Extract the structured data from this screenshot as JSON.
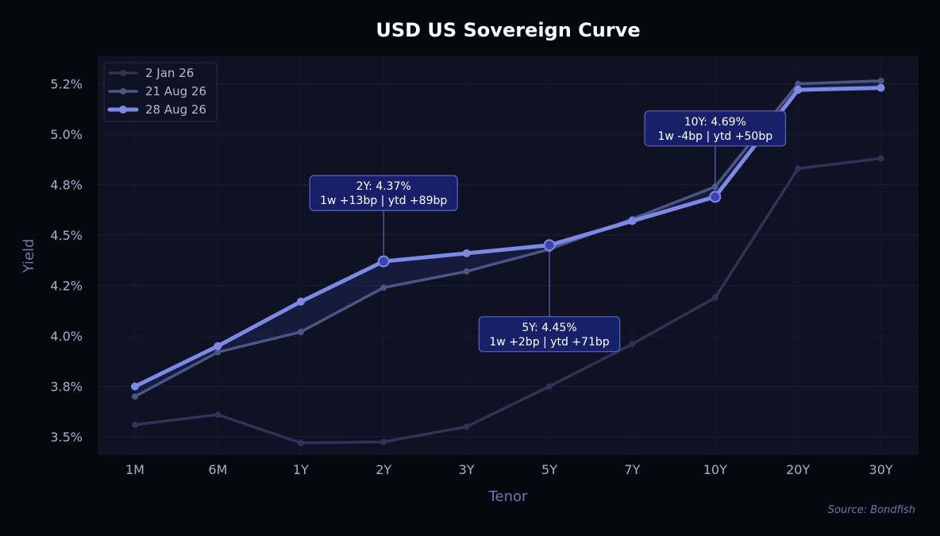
{
  "chart_data": {
    "type": "line",
    "title": "USD US Sovereign Curve",
    "xlabel": "Tenor",
    "ylabel": "Yield",
    "categories": [
      "1M",
      "6M",
      "1Y",
      "2Y",
      "3Y",
      "5Y",
      "7Y",
      "10Y",
      "20Y",
      "30Y"
    ],
    "ylim": [
      3.41,
      5.39
    ],
    "yticks": [
      3.5,
      3.75,
      4.0,
      4.25,
      4.5,
      4.75,
      5.0,
      5.25
    ],
    "ytick_labels": [
      "3.5%",
      "3.8%",
      "4.0%",
      "4.2%",
      "4.5%",
      "4.8%",
      "5.0%",
      "5.2%"
    ],
    "grid": true,
    "legend_position": "top-left",
    "series": [
      {
        "name": "2 Jan 26",
        "color": "#2f3358",
        "values": [
          3.56,
          3.61,
          3.47,
          3.475,
          3.55,
          3.75,
          3.96,
          4.19,
          4.83,
          4.88
        ]
      },
      {
        "name": "21 Aug 26",
        "color": "#4c5587",
        "values": [
          3.7,
          3.92,
          4.02,
          4.24,
          4.32,
          4.43,
          4.58,
          4.74,
          5.25,
          5.265
        ]
      },
      {
        "name": "28 Aug 26",
        "color": "#7c8ae6",
        "values": [
          3.75,
          3.95,
          4.17,
          4.37,
          4.41,
          4.45,
          4.57,
          4.69,
          5.22,
          5.23
        ]
      }
    ],
    "fill_between": [
      "21 Aug 26",
      "28 Aug 26"
    ],
    "annotations": [
      {
        "category": "2Y",
        "line1": "2Y: 4.37%",
        "line2": "1w +13bp | ytd +89bp",
        "placement": "above"
      },
      {
        "category": "5Y",
        "line1": "5Y: 4.45%",
        "line2": "1w +2bp | ytd +71bp",
        "placement": "below"
      },
      {
        "category": "10Y",
        "line1": "10Y: 4.69%",
        "line2": "1w -4bp | ytd +50bp",
        "placement": "above"
      }
    ],
    "source": "Source: Bondfish"
  },
  "colors": {
    "background": "#060810",
    "plot_background": "#0e1222",
    "grid": "#1a1f36",
    "tick_text": "#a9aec8",
    "axis_label": "#6f78a8",
    "title": "#ffffff",
    "annotation_box": "#19206a",
    "annotation_border": "#5a66c4",
    "annotation_text": "#ffffff",
    "legend_border": "#2a2f4a",
    "legend_text": "#b5b9d0",
    "fill": "#262c6a",
    "source_text": "#6f78a8"
  }
}
